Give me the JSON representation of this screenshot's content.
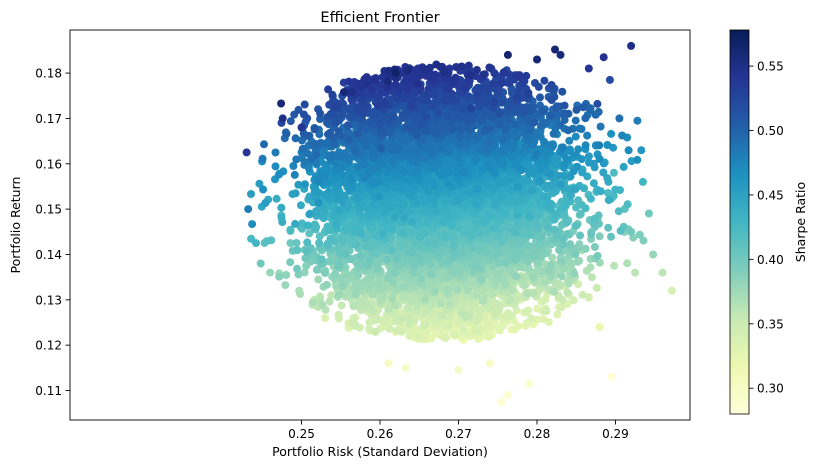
{
  "chart_data": {
    "type": "scatter",
    "title": "Efficient Frontier",
    "xlabel": "Portfolio Risk (Standard Deviation)",
    "ylabel": "Portfolio Return",
    "xlim": [
      0.2205,
      0.2995
    ],
    "ylim": [
      0.1035,
      0.1895
    ],
    "xticks": [
      0.25,
      0.26,
      0.27,
      0.28,
      0.29
    ],
    "yticks": [
      0.11,
      0.12,
      0.13,
      0.14,
      0.15,
      0.16,
      0.17,
      0.18
    ],
    "grid": false,
    "colorbar": {
      "label": "Sharpe Ratio",
      "range": [
        0.28,
        0.578
      ],
      "ticks": [
        0.3,
        0.35,
        0.4,
        0.45,
        0.5,
        0.55
      ],
      "colormap": "YlGnBu",
      "stops": [
        "#ffffd9",
        "#edf8b1",
        "#c7e9b4",
        "#7fcdbb",
        "#41b6c4",
        "#1d91c0",
        "#225ea8",
        "#253494",
        "#081d58"
      ]
    },
    "points": [
      [
        0.292,
        0.186,
        0.55
      ],
      [
        0.2823,
        0.1852,
        0.56
      ],
      [
        0.2885,
        0.1835,
        0.545
      ],
      [
        0.2893,
        0.1785,
        0.52
      ],
      [
        0.2905,
        0.17,
        0.49
      ],
      [
        0.2928,
        0.1695,
        0.48
      ],
      [
        0.2915,
        0.1658,
        0.47
      ],
      [
        0.2933,
        0.163,
        0.46
      ],
      [
        0.2935,
        0.156,
        0.43
      ],
      [
        0.2898,
        0.158,
        0.42
      ],
      [
        0.292,
        0.145,
        0.4
      ],
      [
        0.2948,
        0.14,
        0.38
      ],
      [
        0.2925,
        0.136,
        0.36
      ],
      [
        0.296,
        0.136,
        0.36
      ],
      [
        0.2972,
        0.132,
        0.34
      ],
      [
        0.2895,
        0.113,
        0.285
      ],
      [
        0.288,
        0.124,
        0.32
      ],
      [
        0.279,
        0.1115,
        0.29
      ],
      [
        0.2763,
        0.109,
        0.287
      ],
      [
        0.2755,
        0.1075,
        0.285
      ],
      [
        0.2611,
        0.116,
        0.3
      ],
      [
        0.2633,
        0.115,
        0.298
      ],
      [
        0.243,
        0.1625,
        0.54
      ],
      [
        0.2432,
        0.15,
        0.48
      ],
      [
        0.2437,
        0.1467,
        0.47
      ],
      [
        0.2474,
        0.1733,
        0.56
      ],
      [
        0.2554,
        0.1758,
        0.56
      ],
      [
        0.262,
        0.18,
        0.57
      ],
      [
        0.2763,
        0.184,
        0.565
      ],
      [
        0.28,
        0.183,
        0.56
      ],
      [
        0.283,
        0.184,
        0.555
      ],
      [
        0.2866,
        0.181,
        0.54
      ],
      [
        0.2877,
        0.1732,
        0.52
      ],
      [
        0.2875,
        0.164,
        0.47
      ],
      [
        0.2891,
        0.156,
        0.44
      ],
      [
        0.288,
        0.144,
        0.39
      ],
      [
        0.287,
        0.135,
        0.36
      ],
      [
        0.2866,
        0.1305,
        0.34
      ],
      [
        0.27,
        0.1145,
        0.3
      ],
      [
        0.274,
        0.116,
        0.3
      ],
      [
        0.256,
        0.1238,
        0.33
      ],
      [
        0.253,
        0.126,
        0.335
      ],
      [
        0.2497,
        0.132,
        0.37
      ],
      [
        0.246,
        0.136,
        0.38
      ],
      [
        0.2448,
        0.138,
        0.4
      ],
      [
        0.2442,
        0.1425,
        0.43
      ],
      [
        0.2476,
        0.17,
        0.55
      ],
      [
        0.25,
        0.168,
        0.54
      ]
    ]
  }
}
